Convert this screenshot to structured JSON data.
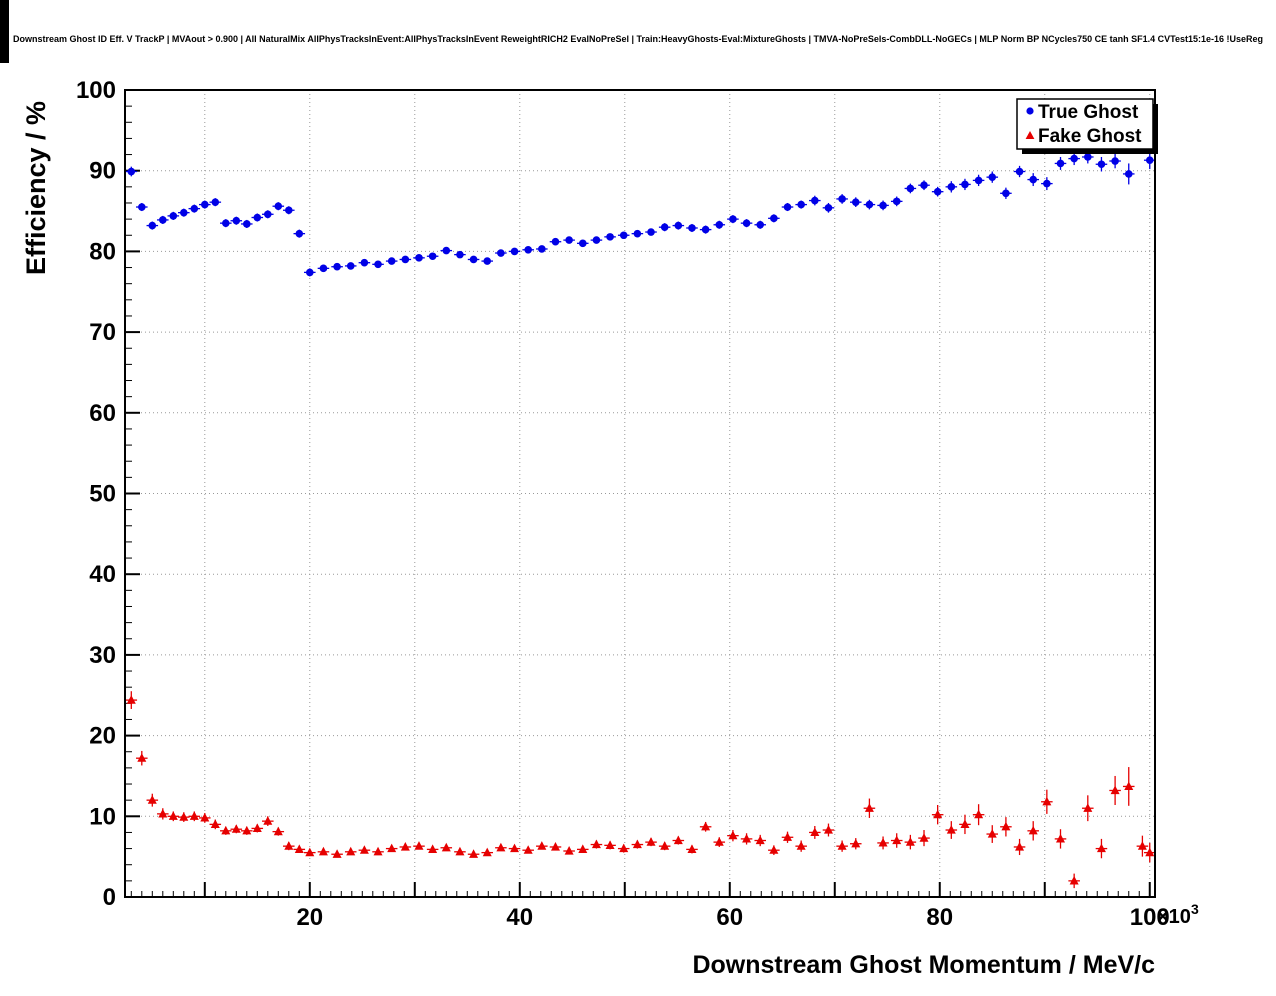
{
  "chart_data": {
    "type": "scatter",
    "title": "Downstream Ghost ID Eff. V TrackP | MVAout > 0.900 | All NaturalMix AllPhysTracksInEvent:AllPhysTracksInEvent ReweightRICH2 EvalNoPreSel | Train:HeavyGhosts-Eval:MixtureGhosts | TMVA-NoPreSels-CombDLL-NoGECs | MLP Norm BP NCycles750 CE tanh SF1.4 CVTest15:1e-16 !UseReg",
    "xlabel": "Downstream Ghost Momentum / MeV/c",
    "ylabel": "Efficiency / %",
    "x_exponent_base": "×10",
    "x_exponent_power": "3",
    "xlim": [
      2.4,
      100.5
    ],
    "ylim": [
      0,
      100
    ],
    "grid": true,
    "grid_step_x": 10,
    "grid_step_y": 10,
    "legend_position": "top-right",
    "x_tick_labels": [
      20,
      40,
      60,
      80,
      100
    ],
    "y_tick_labels": [
      0,
      10,
      20,
      30,
      40,
      50,
      60,
      70,
      80,
      90,
      100
    ],
    "bin_half_width": 0.55,
    "series": [
      {
        "name": "True Ghost",
        "color": "#0000e6",
        "marker": "circle",
        "points": [
          [
            3.0,
            89.9,
            0.6
          ],
          [
            4.0,
            85.5,
            0.5
          ],
          [
            5.0,
            83.2,
            0.5
          ],
          [
            6.0,
            83.9,
            0.5
          ],
          [
            7.0,
            84.4,
            0.5
          ],
          [
            8.0,
            84.8,
            0.5
          ],
          [
            9.0,
            85.3,
            0.5
          ],
          [
            10.0,
            85.8,
            0.5
          ],
          [
            11.0,
            86.1,
            0.5
          ],
          [
            12.0,
            83.5,
            0.5
          ],
          [
            13.0,
            83.8,
            0.5
          ],
          [
            14.0,
            83.4,
            0.5
          ],
          [
            15.0,
            84.2,
            0.5
          ],
          [
            16.0,
            84.6,
            0.5
          ],
          [
            17.0,
            85.6,
            0.5
          ],
          [
            18.0,
            85.1,
            0.5
          ],
          [
            19.0,
            82.2,
            0.5
          ],
          [
            20.0,
            77.4,
            0.5
          ],
          [
            21.3,
            77.9,
            0.4
          ],
          [
            22.6,
            78.1,
            0.4
          ],
          [
            23.9,
            78.2,
            0.4
          ],
          [
            25.2,
            78.6,
            0.4
          ],
          [
            26.5,
            78.4,
            0.4
          ],
          [
            27.8,
            78.8,
            0.4
          ],
          [
            29.1,
            79.0,
            0.4
          ],
          [
            30.4,
            79.2,
            0.4
          ],
          [
            31.7,
            79.4,
            0.4
          ],
          [
            33.0,
            80.1,
            0.4
          ],
          [
            34.3,
            79.6,
            0.4
          ],
          [
            35.6,
            79.0,
            0.4
          ],
          [
            36.9,
            78.8,
            0.4
          ],
          [
            38.2,
            79.8,
            0.4
          ],
          [
            39.5,
            80.0,
            0.4
          ],
          [
            40.8,
            80.2,
            0.4
          ],
          [
            42.1,
            80.3,
            0.4
          ],
          [
            43.4,
            81.2,
            0.4
          ],
          [
            44.7,
            81.4,
            0.4
          ],
          [
            46.0,
            81.0,
            0.4
          ],
          [
            47.3,
            81.4,
            0.4
          ],
          [
            48.6,
            81.8,
            0.4
          ],
          [
            49.9,
            82.0,
            0.4
          ],
          [
            51.2,
            82.2,
            0.4
          ],
          [
            52.5,
            82.4,
            0.4
          ],
          [
            53.8,
            83.0,
            0.5
          ],
          [
            55.1,
            83.2,
            0.5
          ],
          [
            56.4,
            82.9,
            0.5
          ],
          [
            57.7,
            82.7,
            0.5
          ],
          [
            59.0,
            83.3,
            0.5
          ],
          [
            60.3,
            84.0,
            0.5
          ],
          [
            61.6,
            83.5,
            0.5
          ],
          [
            62.9,
            83.3,
            0.5
          ],
          [
            64.2,
            84.1,
            0.5
          ],
          [
            65.5,
            85.5,
            0.5
          ],
          [
            66.8,
            85.8,
            0.5
          ],
          [
            68.1,
            86.3,
            0.6
          ],
          [
            69.4,
            85.4,
            0.6
          ],
          [
            70.7,
            86.5,
            0.6
          ],
          [
            72.0,
            86.1,
            0.6
          ],
          [
            73.3,
            85.8,
            0.6
          ],
          [
            74.6,
            85.7,
            0.6
          ],
          [
            75.9,
            86.2,
            0.6
          ],
          [
            77.2,
            87.8,
            0.6
          ],
          [
            78.5,
            88.2,
            0.6
          ],
          [
            79.8,
            87.4,
            0.6
          ],
          [
            81.1,
            88.0,
            0.7
          ],
          [
            82.4,
            88.3,
            0.7
          ],
          [
            83.7,
            88.8,
            0.7
          ],
          [
            85.0,
            89.2,
            0.7
          ],
          [
            86.3,
            87.2,
            0.7
          ],
          [
            87.6,
            89.9,
            0.7
          ],
          [
            88.9,
            88.9,
            0.8
          ],
          [
            90.2,
            88.4,
            0.8
          ],
          [
            91.5,
            90.9,
            0.8
          ],
          [
            92.8,
            91.5,
            0.8
          ],
          [
            94.1,
            91.7,
            0.8
          ],
          [
            95.4,
            90.8,
            0.9
          ],
          [
            96.7,
            91.2,
            0.9
          ],
          [
            98.0,
            89.6,
            1.3
          ],
          [
            99.3,
            93.8,
            0.9
          ],
          [
            100.0,
            91.3,
            1.1
          ]
        ]
      },
      {
        "name": "Fake Ghost",
        "color": "#e60000",
        "marker": "triangle-up",
        "points": [
          [
            3.0,
            24.4,
            1.1
          ],
          [
            4.0,
            17.2,
            0.9
          ],
          [
            5.0,
            12.0,
            0.8
          ],
          [
            6.0,
            10.3,
            0.7
          ],
          [
            7.0,
            10.0,
            0.6
          ],
          [
            8.0,
            9.9,
            0.6
          ],
          [
            9.0,
            10.0,
            0.6
          ],
          [
            10.0,
            9.8,
            0.6
          ],
          [
            11.0,
            9.0,
            0.6
          ],
          [
            12.0,
            8.2,
            0.5
          ],
          [
            13.0,
            8.4,
            0.5
          ],
          [
            14.0,
            8.2,
            0.5
          ],
          [
            15.0,
            8.5,
            0.5
          ],
          [
            16.0,
            9.4,
            0.6
          ],
          [
            17.0,
            8.1,
            0.5
          ],
          [
            18.0,
            6.3,
            0.5
          ],
          [
            19.0,
            5.9,
            0.4
          ],
          [
            20.0,
            5.5,
            0.4
          ],
          [
            21.3,
            5.6,
            0.4
          ],
          [
            22.6,
            5.3,
            0.4
          ],
          [
            23.9,
            5.6,
            0.4
          ],
          [
            25.2,
            5.8,
            0.4
          ],
          [
            26.5,
            5.6,
            0.4
          ],
          [
            27.8,
            6.0,
            0.4
          ],
          [
            29.1,
            6.2,
            0.4
          ],
          [
            30.4,
            6.3,
            0.4
          ],
          [
            31.7,
            5.9,
            0.4
          ],
          [
            33.0,
            6.1,
            0.4
          ],
          [
            34.3,
            5.6,
            0.4
          ],
          [
            35.6,
            5.3,
            0.4
          ],
          [
            36.9,
            5.5,
            0.4
          ],
          [
            38.2,
            6.1,
            0.4
          ],
          [
            39.5,
            6.0,
            0.4
          ],
          [
            40.8,
            5.8,
            0.4
          ],
          [
            42.1,
            6.3,
            0.4
          ],
          [
            43.4,
            6.2,
            0.4
          ],
          [
            44.7,
            5.7,
            0.4
          ],
          [
            46.0,
            5.9,
            0.4
          ],
          [
            47.3,
            6.5,
            0.5
          ],
          [
            48.6,
            6.4,
            0.5
          ],
          [
            49.9,
            6.0,
            0.5
          ],
          [
            51.2,
            6.5,
            0.5
          ],
          [
            52.5,
            6.8,
            0.5
          ],
          [
            53.8,
            6.3,
            0.5
          ],
          [
            55.1,
            7.0,
            0.5
          ],
          [
            56.4,
            5.9,
            0.5
          ],
          [
            57.7,
            8.7,
            0.6
          ],
          [
            59.0,
            6.8,
            0.6
          ],
          [
            60.3,
            7.6,
            0.7
          ],
          [
            61.6,
            7.2,
            0.7
          ],
          [
            62.9,
            7.0,
            0.7
          ],
          [
            64.2,
            5.8,
            0.6
          ],
          [
            65.5,
            7.4,
            0.7
          ],
          [
            66.8,
            6.3,
            0.7
          ],
          [
            68.1,
            8.0,
            0.8
          ],
          [
            69.4,
            8.3,
            0.8
          ],
          [
            70.7,
            6.3,
            0.7
          ],
          [
            72.0,
            6.6,
            0.7
          ],
          [
            73.3,
            11.0,
            1.2
          ],
          [
            74.6,
            6.7,
            0.8
          ],
          [
            75.9,
            7.0,
            0.9
          ],
          [
            77.2,
            6.8,
            0.9
          ],
          [
            78.5,
            7.3,
            1.0
          ],
          [
            79.8,
            10.2,
            1.2
          ],
          [
            81.1,
            8.3,
            1.1
          ],
          [
            82.4,
            9.0,
            1.2
          ],
          [
            83.7,
            10.2,
            1.3
          ],
          [
            85.0,
            7.8,
            1.1
          ],
          [
            86.3,
            8.7,
            1.2
          ],
          [
            87.6,
            6.2,
            1.0
          ],
          [
            88.9,
            8.2,
            1.2
          ],
          [
            90.2,
            11.8,
            1.5
          ],
          [
            91.5,
            7.2,
            1.2
          ],
          [
            92.8,
            2.0,
            0.9
          ],
          [
            94.1,
            11.0,
            1.6
          ],
          [
            95.4,
            6.0,
            1.2
          ],
          [
            96.7,
            13.2,
            1.8
          ],
          [
            98.0,
            13.7,
            2.4
          ],
          [
            99.3,
            6.3,
            1.3
          ],
          [
            100.0,
            5.5,
            1.2
          ]
        ]
      }
    ]
  }
}
